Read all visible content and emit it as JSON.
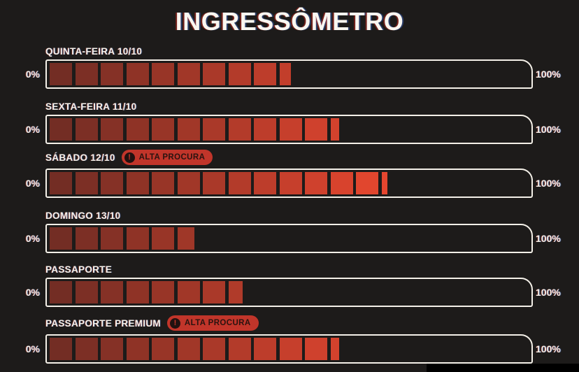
{
  "title": "INGRESSÔMETRO",
  "colors": {
    "background": "#1D1B1A",
    "bar_border": "#F4F0E8",
    "text": "#F6F2EB",
    "badge_background": "#C1352A",
    "badge_text": "#2A1310",
    "segment_start": "#6B2B23",
    "segment_end": "#E8472F"
  },
  "badge": {
    "label": "ALTA PROCURA",
    "icon_glyph": "!"
  },
  "meters": [
    {
      "label": "QUINTA-FEIRA 10/10",
      "percent": 50,
      "high_demand": false,
      "min_label": "0%",
      "max_label": "100%"
    },
    {
      "label": "SEXTA-FEIRA 11/10",
      "percent": 60,
      "high_demand": false,
      "min_label": "0%",
      "max_label": "100%"
    },
    {
      "label": "SÁBADO 12/10",
      "percent": 70,
      "high_demand": true,
      "min_label": "0%",
      "max_label": "100%"
    },
    {
      "label": "DOMINGO 13/10",
      "percent": 30,
      "high_demand": false,
      "min_label": "0%",
      "max_label": "100%"
    },
    {
      "label": "PASSAPORTE",
      "percent": 40,
      "high_demand": false,
      "min_label": "0%",
      "max_label": "100%"
    },
    {
      "label": "PASSAPORTE PREMIUM",
      "percent": 60,
      "high_demand": true,
      "min_label": "0%",
      "max_label": "100%"
    }
  ],
  "chart_data": {
    "type": "bar",
    "title": "INGRESSÔMETRO",
    "orientation": "horizontal",
    "categories": [
      "QUINTA-FEIRA 10/10",
      "SEXTA-FEIRA 11/10",
      "SÁBADO 12/10",
      "DOMINGO 13/10",
      "PASSAPORTE",
      "PASSAPORTE PREMIUM"
    ],
    "values": [
      50,
      60,
      70,
      30,
      40,
      60
    ],
    "unit": "percent",
    "xlabel": "",
    "ylabel": "",
    "xlim": [
      0,
      100
    ],
    "axis_min_label": "0%",
    "axis_max_label": "100%",
    "annotations": [
      "ALTA PROCURA on SÁBADO 12/10",
      "ALTA PROCURA on PASSAPORTE PREMIUM"
    ],
    "style": "segmented blocks, dark-red to bright-red gradient left to right"
  }
}
